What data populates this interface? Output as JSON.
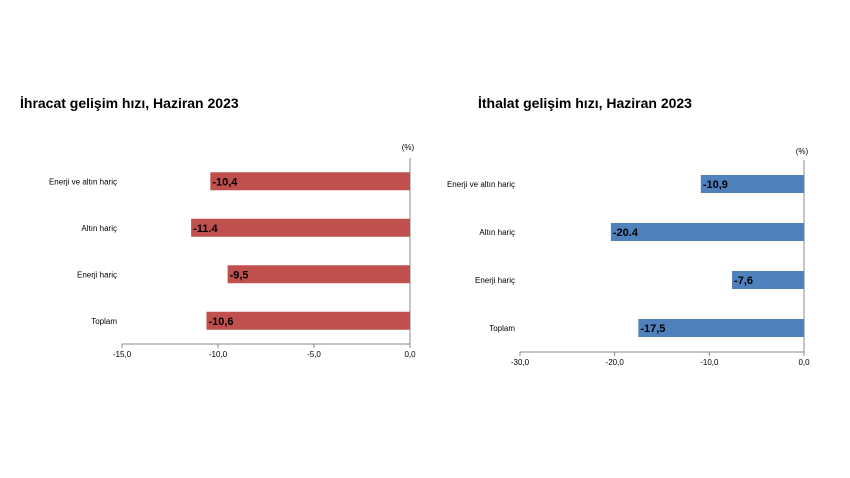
{
  "chart_data": [
    {
      "type": "bar",
      "orientation": "horizontal",
      "title": "İhracat gelişim hızı, Haziran 2023",
      "unit": "(%)",
      "categories": [
        "Enerji ve altın hariç",
        "Altın hariç",
        "Enerji hariç",
        "Toplam"
      ],
      "values": [
        -10.4,
        -11.4,
        -9.5,
        -10.6
      ],
      "value_labels": [
        "-10,4",
        "-11.4",
        "-9,5",
        "-10,6"
      ],
      "xlim": [
        -15,
        0
      ],
      "ticks": [
        -15,
        -10,
        -5,
        0
      ],
      "tick_labels": [
        "-15,0",
        "-10,0",
        "-5,0",
        "0,0"
      ],
      "color": "#c0504d",
      "grid": false
    },
    {
      "type": "bar",
      "orientation": "horizontal",
      "title": "İthalat gelişim hızı, Haziran 2023",
      "unit": "(%)",
      "categories": [
        "Enerji ve altın hariç",
        "Altın hariç",
        "Enerji hariç",
        "Toplam"
      ],
      "values": [
        -10.9,
        -20.4,
        -7.6,
        -17.5
      ],
      "value_labels": [
        "-10,9",
        "-20.4",
        "-7,6",
        "-17,5"
      ],
      "xlim": [
        -30,
        0
      ],
      "ticks": [
        -30,
        -20,
        -10,
        0
      ],
      "tick_labels": [
        "-30,0",
        "-20,0",
        "-10,0",
        "0,0"
      ],
      "color": "#4f81bd",
      "grid": false
    }
  ]
}
